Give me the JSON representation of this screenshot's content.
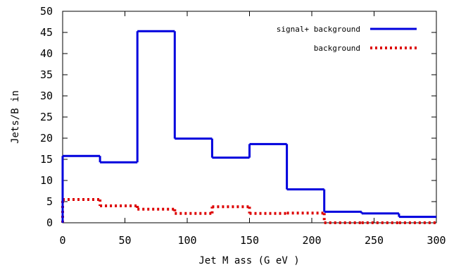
{
  "chart_data": {
    "type": "line",
    "step": true,
    "xlabel": "Jet M ass (G eV )",
    "ylabel": "Jets/B in",
    "xlim": [
      0,
      300
    ],
    "ylim": [
      0,
      50
    ],
    "xticks": [
      0,
      50,
      100,
      150,
      200,
      250,
      300
    ],
    "yticks": [
      0,
      5,
      10,
      15,
      20,
      25,
      30,
      35,
      40,
      45,
      50
    ],
    "grid": false,
    "legend_position": "top-right",
    "bin_edges": [
      0,
      30,
      60,
      90,
      120,
      150,
      180,
      210,
      240,
      270,
      300
    ],
    "series": [
      {
        "name": "signal+ background",
        "color": "#0000dd",
        "style": "solid",
        "values": [
          15.8,
          14.3,
          45.3,
          19.9,
          15.4,
          18.6,
          7.9,
          2.6,
          2.2,
          1.4
        ]
      },
      {
        "name": "background",
        "color": "#dd0000",
        "style": "dotted",
        "values": [
          5.5,
          4.0,
          3.2,
          2.2,
          3.8,
          2.2,
          2.3,
          0.0,
          0.0,
          0.0
        ]
      }
    ]
  }
}
